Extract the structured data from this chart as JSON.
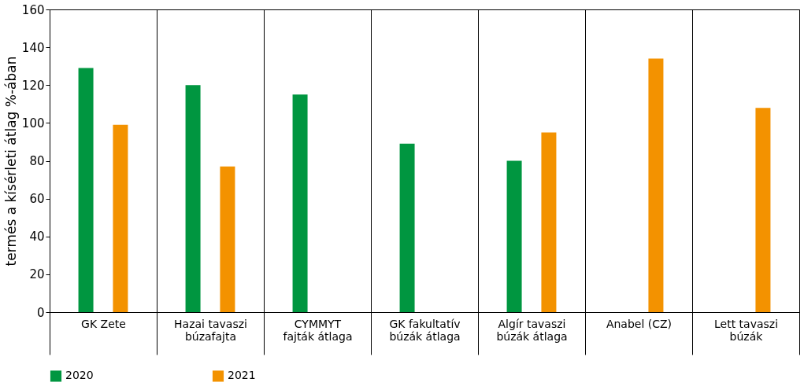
{
  "chart_data": {
    "type": "bar",
    "ylabel": "termés a kísérleti átlag %-ában",
    "categories": [
      "GK Zete",
      "Hazai tavaszi\nbúzafajta",
      "CYMMYT\nfajták átlaga",
      "GK fakultatív\nbúzák átlaga",
      "Algír tavaszi\nbúzák átlaga",
      "Anabel (CZ)",
      "Lett tavaszi\nbúzák"
    ],
    "series": [
      {
        "name": "2020",
        "color": "#009640",
        "values": [
          129,
          120,
          115,
          89,
          80,
          null,
          null
        ]
      },
      {
        "name": "2021",
        "color": "#f39200",
        "values": [
          99,
          77,
          null,
          null,
          95,
          134,
          108
        ]
      }
    ],
    "ylim": [
      0,
      160
    ],
    "yticks": [
      0,
      20,
      40,
      60,
      80,
      100,
      120,
      140,
      160
    ],
    "grid": "x",
    "legend": "bottom"
  }
}
